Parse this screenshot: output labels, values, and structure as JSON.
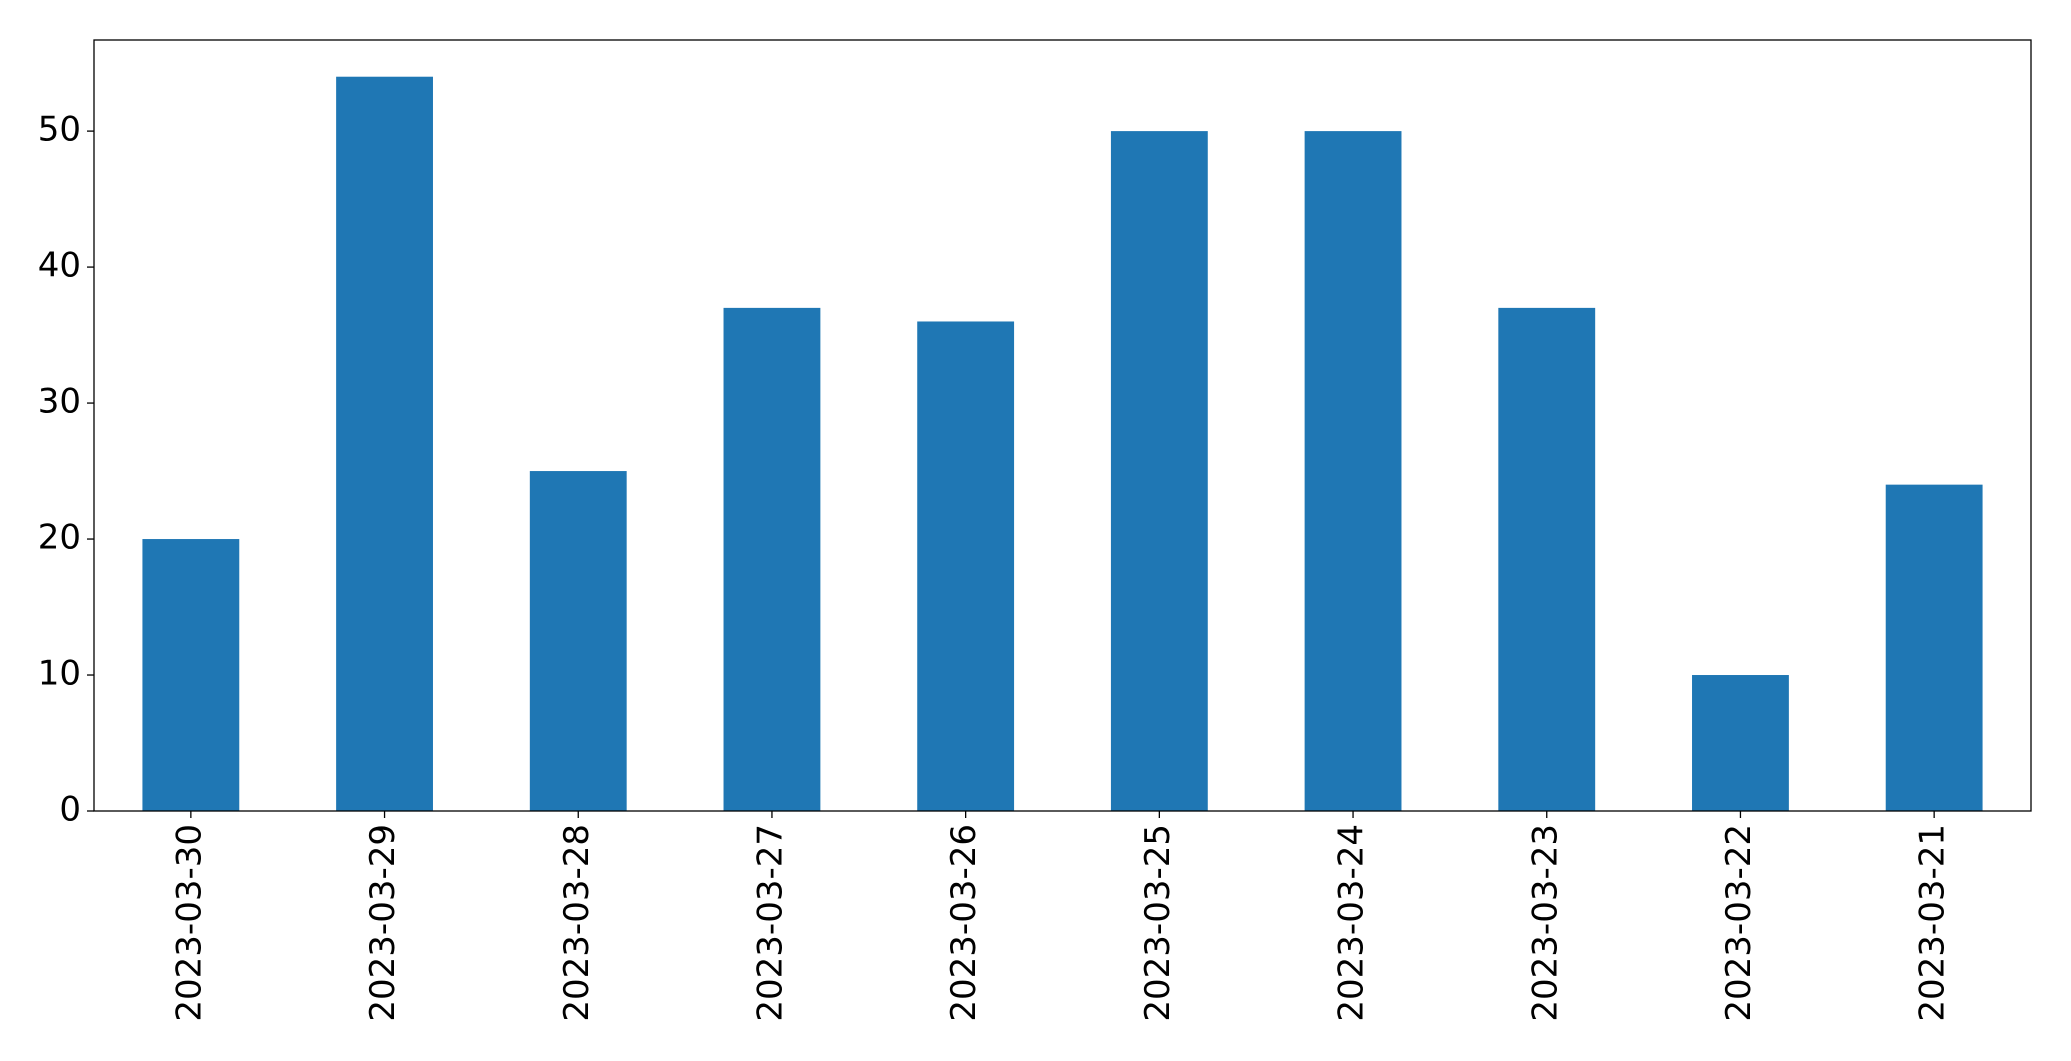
{
  "chart_data": {
    "type": "bar",
    "categories": [
      "2023-03-30",
      "2023-03-29",
      "2023-03-28",
      "2023-03-27",
      "2023-03-26",
      "2023-03-25",
      "2023-03-24",
      "2023-03-23",
      "2023-03-22",
      "2023-03-21"
    ],
    "values": [
      20,
      54,
      25,
      37,
      36,
      50,
      50,
      37,
      10,
      24
    ],
    "color": "#1f77b4",
    "ylim": [
      0,
      56.7
    ],
    "yticks": [
      0,
      10,
      20,
      30,
      40,
      50
    ],
    "grid": false
  }
}
